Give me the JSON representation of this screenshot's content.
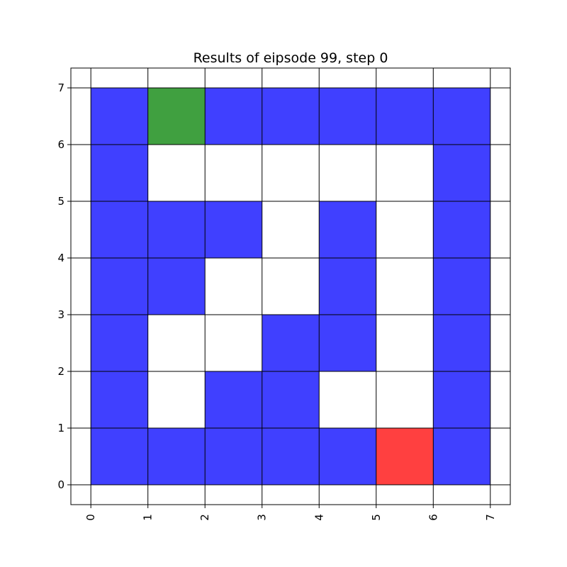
{
  "figure": {
    "title": "Results of eipsode 99, step 0"
  },
  "grid": {
    "x_ticks": [
      "0",
      "1",
      "2",
      "3",
      "4",
      "5",
      "6",
      "7"
    ],
    "y_ticks": [
      "0",
      "1",
      "2",
      "3",
      "4",
      "5",
      "6",
      "7"
    ],
    "xlim": [
      -0.35,
      7.35
    ],
    "ylim": [
      -0.35,
      7.35
    ],
    "gridlines": true,
    "colors": {
      "wall": "#4040ff",
      "goal": "#40a040",
      "agent": "#ff4040",
      "empty": "#ffffff",
      "line": "#000000"
    },
    "cells": [
      {
        "row": 6,
        "cols": [
          "wall",
          "goal",
          "wall",
          "wall",
          "wall",
          "wall",
          "wall"
        ]
      },
      {
        "row": 5,
        "cols": [
          "wall",
          "empty",
          "empty",
          "empty",
          "empty",
          "empty",
          "wall"
        ]
      },
      {
        "row": 4,
        "cols": [
          "wall",
          "wall",
          "wall",
          "empty",
          "wall",
          "empty",
          "wall"
        ]
      },
      {
        "row": 3,
        "cols": [
          "wall",
          "wall",
          "empty",
          "empty",
          "wall",
          "empty",
          "wall"
        ]
      },
      {
        "row": 2,
        "cols": [
          "wall",
          "empty",
          "empty",
          "wall",
          "wall",
          "empty",
          "wall"
        ]
      },
      {
        "row": 1,
        "cols": [
          "wall",
          "empty",
          "wall",
          "wall",
          "empty",
          "empty",
          "wall"
        ]
      },
      {
        "row": 0,
        "cols": [
          "wall",
          "wall",
          "wall",
          "wall",
          "wall",
          "agent",
          "wall"
        ]
      }
    ]
  }
}
